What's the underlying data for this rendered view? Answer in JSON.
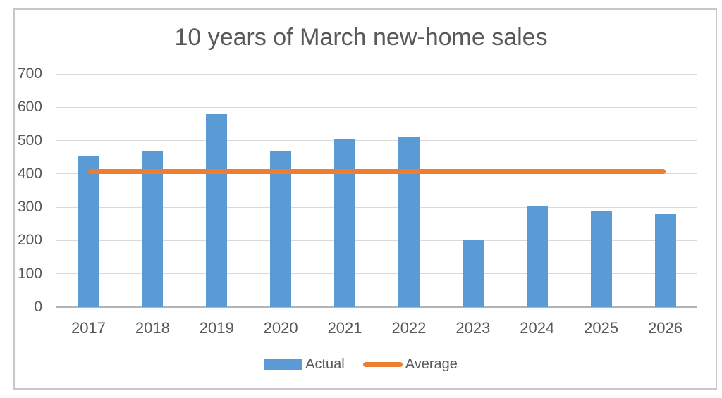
{
  "chart_data": {
    "type": "bar",
    "title": "10 years of March new-home sales",
    "categories": [
      "2017",
      "2018",
      "2019",
      "2020",
      "2021",
      "2022",
      "2023",
      "2024",
      "2025",
      "2026"
    ],
    "series": [
      {
        "name": "Actual",
        "type": "bar",
        "color": "#5b9bd5",
        "values": [
          455,
          470,
          580,
          470,
          505,
          510,
          200,
          305,
          290,
          280
        ]
      },
      {
        "name": "Average",
        "type": "line",
        "color": "#ed7d31",
        "values": [
          407,
          407,
          407,
          407,
          407,
          407,
          407,
          407,
          407,
          407
        ]
      }
    ],
    "xlabel": "",
    "ylabel": "",
    "ylim": [
      0,
      700
    ],
    "yticks": [
      0,
      100,
      200,
      300,
      400,
      500,
      600,
      700
    ],
    "grid": true,
    "legend_position": "bottom",
    "colors": {
      "text": "#595959",
      "gridline": "#d9d9d9",
      "axis": "#b3b3b3",
      "frame_border": "#c8c8c8",
      "background": "#ffffff"
    }
  }
}
